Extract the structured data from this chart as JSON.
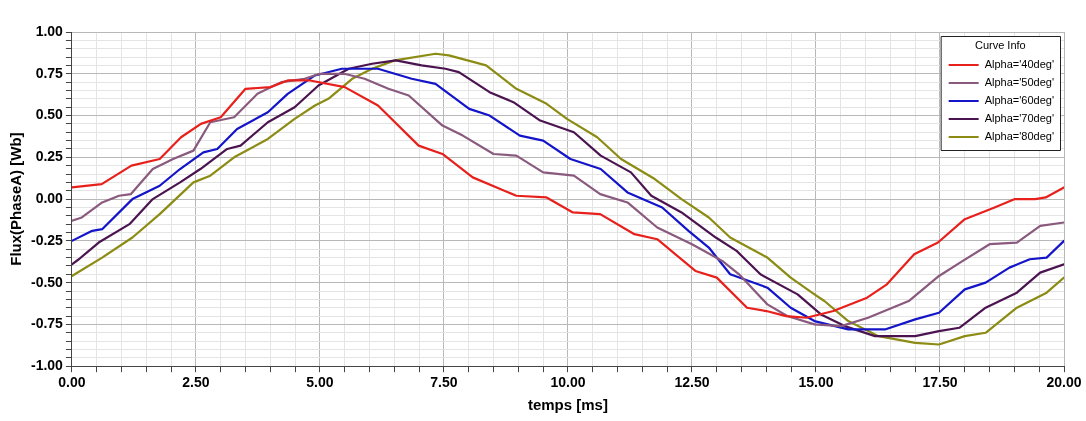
{
  "chart_data": {
    "type": "line",
    "xlabel": "temps [ms]",
    "ylabel": "Flux(PhaseA) [Wb]",
    "legend_title": "Curve Info",
    "legend": "top right",
    "grid": true,
    "marker": "none",
    "line_style": "solid",
    "xlim": [
      0,
      20
    ],
    "ylim": [
      -1,
      1
    ],
    "xticks": [
      {
        "value": 0,
        "label": "0.00"
      },
      {
        "value": 0.5,
        "label": null
      },
      {
        "value": 1,
        "label": null
      },
      {
        "value": 1.5,
        "label": null
      },
      {
        "value": 2,
        "label": null
      },
      {
        "value": 2.5,
        "label": "2.50"
      },
      {
        "value": 3,
        "label": null
      },
      {
        "value": 3.5,
        "label": null
      },
      {
        "value": 4,
        "label": null
      },
      {
        "value": 4.5,
        "label": null
      },
      {
        "value": 5,
        "label": "5.00"
      },
      {
        "value": 5.5,
        "label": null
      },
      {
        "value": 6,
        "label": null
      },
      {
        "value": 6.5,
        "label": null
      },
      {
        "value": 7,
        "label": null
      },
      {
        "value": 7.5,
        "label": "7.50"
      },
      {
        "value": 8,
        "label": null
      },
      {
        "value": 8.5,
        "label": null
      },
      {
        "value": 9,
        "label": null
      },
      {
        "value": 9.5,
        "label": null
      },
      {
        "value": 10,
        "label": "10.00"
      },
      {
        "value": 10.5,
        "label": null
      },
      {
        "value": 11,
        "label": null
      },
      {
        "value": 11.5,
        "label": null
      },
      {
        "value": 12,
        "label": null
      },
      {
        "value": 12.5,
        "label": "12.50"
      },
      {
        "value": 13,
        "label": null
      },
      {
        "value": 13.5,
        "label": null
      },
      {
        "value": 14,
        "label": null
      },
      {
        "value": 14.5,
        "label": null
      },
      {
        "value": 15,
        "label": "15.00"
      },
      {
        "value": 15.5,
        "label": null
      },
      {
        "value": 16,
        "label": null
      },
      {
        "value": 16.5,
        "label": null
      },
      {
        "value": 17,
        "label": null
      },
      {
        "value": 17.5,
        "label": "17.50"
      },
      {
        "value": 18,
        "label": null
      },
      {
        "value": 18.5,
        "label": null
      },
      {
        "value": 19,
        "label": null
      },
      {
        "value": 19.5,
        "label": null
      },
      {
        "value": 20,
        "label": "20.00"
      }
    ],
    "yticks": [
      {
        "value": -1,
        "label": "-1.00"
      },
      {
        "value": -0.95,
        "label": null
      },
      {
        "value": -0.9,
        "label": null
      },
      {
        "value": -0.85,
        "label": null
      },
      {
        "value": -0.8,
        "label": null
      },
      {
        "value": -0.75,
        "label": "-0.75"
      },
      {
        "value": -0.7,
        "label": null
      },
      {
        "value": -0.65,
        "label": null
      },
      {
        "value": -0.6,
        "label": null
      },
      {
        "value": -0.55,
        "label": null
      },
      {
        "value": -0.5,
        "label": "-0.50"
      },
      {
        "value": -0.45,
        "label": null
      },
      {
        "value": -0.4,
        "label": null
      },
      {
        "value": -0.35,
        "label": null
      },
      {
        "value": -0.3,
        "label": null
      },
      {
        "value": -0.25,
        "label": "-0.25"
      },
      {
        "value": -0.2,
        "label": null
      },
      {
        "value": -0.15,
        "label": null
      },
      {
        "value": -0.1,
        "label": null
      },
      {
        "value": -0.05,
        "label": null
      },
      {
        "value": 0,
        "label": "0.00"
      },
      {
        "value": 0.05,
        "label": null
      },
      {
        "value": 0.1,
        "label": null
      },
      {
        "value": 0.15,
        "label": null
      },
      {
        "value": 0.2,
        "label": null
      },
      {
        "value": 0.25,
        "label": "0.25"
      },
      {
        "value": 0.3,
        "label": null
      },
      {
        "value": 0.35,
        "label": null
      },
      {
        "value": 0.4,
        "label": null
      },
      {
        "value": 0.45,
        "label": null
      },
      {
        "value": 0.5,
        "label": "0.50"
      },
      {
        "value": 0.55,
        "label": null
      },
      {
        "value": 0.6,
        "label": null
      },
      {
        "value": 0.65,
        "label": null
      },
      {
        "value": 0.7,
        "label": null
      },
      {
        "value": 0.75,
        "label": "0.75"
      },
      {
        "value": 0.8,
        "label": null
      },
      {
        "value": 0.85,
        "label": null
      },
      {
        "value": 0.9,
        "label": null
      },
      {
        "value": 0.95,
        "label": null
      },
      {
        "value": 1,
        "label": "1.00"
      }
    ],
    "series": [
      {
        "name": "Alpha='40deg'",
        "color": "#e8201c",
        "x": [
          0,
          0.6,
          1.2,
          1.77,
          2.2,
          2.6,
          3.0,
          3.5,
          4.0,
          4.35,
          4.8,
          5.5,
          6.17,
          6.99,
          7.47,
          8.08,
          8.96,
          9.57,
          10.1,
          10.65,
          11.34,
          11.8,
          12.57,
          13.0,
          13.61,
          14.0,
          14.4,
          14.81,
          15.35,
          16.03,
          16.43,
          16.98,
          17.46,
          18.0,
          18.6,
          19.01,
          19.42,
          19.63,
          20
        ],
        "values": [
          0.07,
          0.09,
          0.2,
          0.24,
          0.37,
          0.45,
          0.49,
          0.66,
          0.67,
          0.71,
          0.71,
          0.67,
          0.56,
          0.32,
          0.27,
          0.13,
          0.02,
          0.01,
          -0.08,
          -0.09,
          -0.21,
          -0.24,
          -0.43,
          -0.47,
          -0.65,
          -0.67,
          -0.7,
          -0.71,
          -0.67,
          -0.59,
          -0.51,
          -0.33,
          -0.26,
          -0.12,
          -0.05,
          0.0,
          0.0,
          0.01,
          0.07
        ]
      },
      {
        "name": "Alpha='50deg'",
        "color": "#8a5a7e",
        "x": [
          0,
          0.2,
          0.61,
          0.95,
          1.19,
          1.63,
          2.04,
          2.45,
          2.79,
          3.27,
          3.74,
          4.22,
          4.69,
          5.0,
          5.49,
          5.9,
          6.38,
          6.79,
          7.47,
          7.88,
          8.5,
          8.96,
          9.5,
          10.12,
          10.65,
          11.2,
          11.8,
          12.5,
          13.11,
          13.45,
          14.02,
          14.42,
          14.97,
          15.51,
          16.05,
          16.87,
          17.48,
          17.96,
          18.5,
          19.05,
          19.52,
          20
        ],
        "values": [
          -0.13,
          -0.11,
          -0.02,
          0.02,
          0.03,
          0.18,
          0.24,
          0.29,
          0.46,
          0.49,
          0.63,
          0.7,
          0.72,
          0.75,
          0.75,
          0.72,
          0.66,
          0.62,
          0.44,
          0.38,
          0.27,
          0.26,
          0.16,
          0.14,
          0.03,
          -0.02,
          -0.17,
          -0.27,
          -0.37,
          -0.45,
          -0.63,
          -0.7,
          -0.75,
          -0.76,
          -0.71,
          -0.61,
          -0.46,
          -0.37,
          -0.27,
          -0.26,
          -0.16,
          -0.14
        ]
      },
      {
        "name": "Alpha='60deg'",
        "color": "#1414c8",
        "x": [
          0,
          0.41,
          0.61,
          1.22,
          1.77,
          2.18,
          2.65,
          2.93,
          3.33,
          3.95,
          4.35,
          4.9,
          5.44,
          6.17,
          6.85,
          7.33,
          8.01,
          8.42,
          9.03,
          9.5,
          10.05,
          10.66,
          11.2,
          11.9,
          12.43,
          12.84,
          13.27,
          14.02,
          14.49,
          14.97,
          15.65,
          16.39,
          17.0,
          17.48,
          18.0,
          18.42,
          18.9,
          19.31,
          19.65,
          20
        ],
        "values": [
          -0.25,
          -0.19,
          -0.18,
          0.0,
          0.08,
          0.18,
          0.28,
          0.3,
          0.42,
          0.52,
          0.63,
          0.74,
          0.78,
          0.78,
          0.72,
          0.69,
          0.54,
          0.5,
          0.38,
          0.35,
          0.24,
          0.18,
          0.04,
          -0.05,
          -0.19,
          -0.29,
          -0.45,
          -0.53,
          -0.65,
          -0.73,
          -0.78,
          -0.78,
          -0.72,
          -0.68,
          -0.54,
          -0.5,
          -0.41,
          -0.36,
          -0.35,
          -0.25
        ]
      },
      {
        "name": "Alpha='70deg'",
        "color": "#4b1450",
        "x": [
          0,
          0.14,
          0.54,
          1.16,
          1.63,
          2.18,
          2.59,
          3.13,
          3.4,
          3.95,
          4.49,
          4.97,
          5.58,
          6.05,
          6.53,
          7.05,
          7.53,
          7.8,
          8.42,
          8.9,
          9.44,
          10.12,
          10.66,
          11.27,
          11.68,
          12.29,
          12.98,
          13.4,
          13.88,
          14.63,
          15.1,
          15.58,
          16.19,
          17.0,
          17.48,
          17.89,
          18.42,
          19.05,
          19.52,
          20
        ],
        "values": [
          -0.39,
          -0.36,
          -0.26,
          -0.15,
          0.0,
          0.1,
          0.18,
          0.3,
          0.32,
          0.46,
          0.55,
          0.68,
          0.78,
          0.81,
          0.83,
          0.8,
          0.78,
          0.76,
          0.64,
          0.58,
          0.47,
          0.4,
          0.26,
          0.16,
          0.02,
          -0.08,
          -0.23,
          -0.31,
          -0.45,
          -0.57,
          -0.69,
          -0.76,
          -0.82,
          -0.82,
          -0.79,
          -0.77,
          -0.65,
          -0.56,
          -0.44,
          -0.39
        ]
      },
      {
        "name": "Alpha='80deg'",
        "color": "#8c8c14",
        "x": [
          0,
          0.61,
          1.22,
          1.77,
          2.45,
          2.79,
          3.27,
          3.95,
          4.49,
          4.9,
          5.17,
          5.65,
          6.05,
          6.51,
          7.33,
          7.6,
          8.35,
          8.96,
          9.57,
          9.98,
          10.59,
          11.07,
          11.75,
          12.29,
          12.84,
          13.27,
          14.02,
          14.49,
          14.97,
          15.17,
          15.65,
          16.26,
          17.0,
          17.48,
          18.0,
          18.42,
          19.05,
          19.65,
          20
        ],
        "values": [
          -0.46,
          -0.35,
          -0.23,
          -0.09,
          0.1,
          0.14,
          0.25,
          0.36,
          0.48,
          0.56,
          0.6,
          0.72,
          0.78,
          0.83,
          0.87,
          0.86,
          0.8,
          0.66,
          0.57,
          0.48,
          0.37,
          0.24,
          0.12,
          0.0,
          -0.11,
          -0.23,
          -0.35,
          -0.47,
          -0.57,
          -0.61,
          -0.73,
          -0.82,
          -0.86,
          -0.87,
          -0.82,
          -0.8,
          -0.65,
          -0.56,
          -0.47
        ]
      }
    ]
  }
}
